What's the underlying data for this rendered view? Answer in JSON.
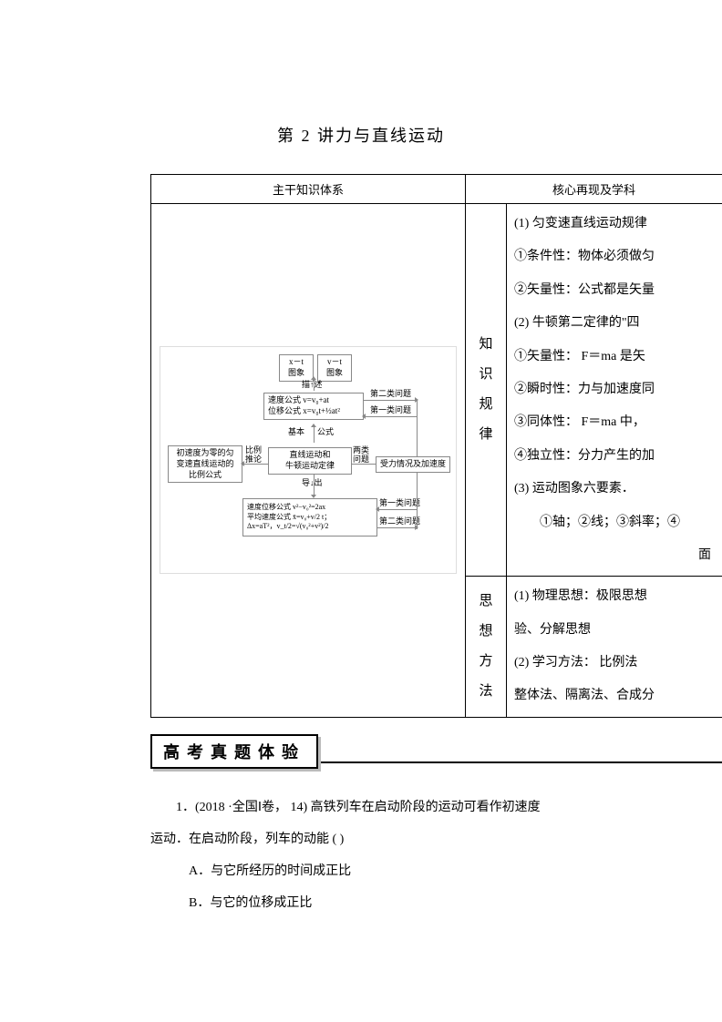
{
  "title": "第 2 讲力与直线运动",
  "table": {
    "header_left": "主干知识体系",
    "header_right": "核心再现及学科",
    "label1_line1": "知识",
    "label1_line2": "规律",
    "label2_line1": "思想",
    "label2_line2": "方法",
    "cell1": {
      "l1": "(1)  匀变速直线运动规律",
      "l2": "①条件性：物体必须做匀",
      "l3": "②矢量性：公式都是矢量",
      "l4": "(2)  牛顿第二定律的\"四",
      "l5": "①矢量性：  F＝ma 是矢",
      "l6": "②瞬时性：力与加速度同",
      "l7": "③同体性：  F＝ma 中，",
      "l8": "④独立性：分力产生的加",
      "l9": "(3)  运动图象六要素．",
      "l10": "①轴；②线；③斜率；④",
      "l11": "面"
    },
    "cell2": {
      "l1": "(1)  物理思想：极限思想",
      "l2": "验、分解思想",
      "l3": "(2)  学习方法：  比例法",
      "l4": "整体法、隔离法、合成分"
    }
  },
  "diagram": {
    "box_xt": "x－t\n图象",
    "box_vt": "v－t\n图象",
    "desc_label": "描↑述",
    "box_speed": "速度公式 v=v₀+at",
    "box_disp": "位移公式 x=v₀t+½at²",
    "q2_top": "第二类问题",
    "q1_top": "第一类问题",
    "basic": "基本",
    "formula": "公式",
    "box_init": "初速度为零的匀\n变速直线运动的\n比例公式",
    "ratio": "比例\n推论",
    "box_newton": "直线运动和\n牛顿运动定律",
    "two_kind": "两类\n问题",
    "box_force": "受力情况及加速度",
    "derive": "导↓出",
    "box_bottom": "速度位移公式 v²−v₀²=2ax\n平均速度公式 x̄=v₀+v/2 t；\nΔx=aT²，v_t/2=√(v₀²+v²)/2",
    "q1_bot": "第一类问题",
    "q2_bot": "第二类问题"
  },
  "banner": "高考真题体验",
  "question": {
    "line1": "1．(2018  ·全国Ⅰ卷，    14) 高铁列车在启动阶段的运动可看作初速度",
    "line2": "运动．在启动阶段，列车的动能    (      )",
    "optA": "A．与它所经历的时间成正比",
    "optB": "B．与它的位移成正比"
  }
}
